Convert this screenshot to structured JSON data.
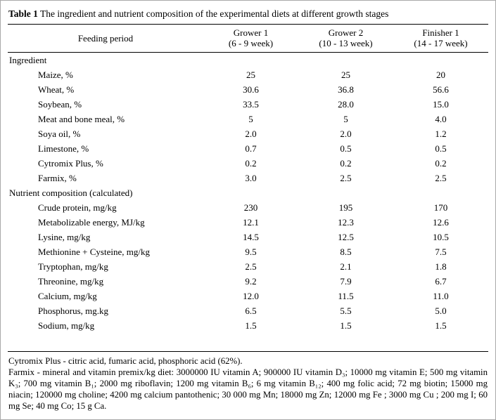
{
  "title": {
    "label": "Table 1",
    "text": "The ingredient and nutrient composition of the experimental diets at different growth stages"
  },
  "table": {
    "feeding_period_label": "Feeding period",
    "columns": [
      {
        "name": "Grower 1",
        "weeks": "(6 - 9 week)"
      },
      {
        "name": "Grower 2",
        "weeks": "(10 - 13 week)"
      },
      {
        "name": "Finisher 1",
        "weeks": "(14 - 17 week)"
      }
    ],
    "sections": [
      {
        "name": "Ingredient",
        "rows": [
          {
            "label": "Maize, %",
            "values": [
              "25",
              "25",
              "20"
            ]
          },
          {
            "label": "Wheat, %",
            "values": [
              "30.6",
              "36.8",
              "56.6"
            ]
          },
          {
            "label": "Soybean, %",
            "values": [
              "33.5",
              "28.0",
              "15.0"
            ]
          },
          {
            "label": "Meat and bone meal, %",
            "values": [
              "5",
              "5",
              "4.0"
            ]
          },
          {
            "label": "Soya oil, %",
            "values": [
              "2.0",
              "2.0",
              "1.2"
            ]
          },
          {
            "label": "Limestone, %",
            "values": [
              "0.7",
              "0.5",
              "0.5"
            ]
          },
          {
            "label": "Cytromix Plus, %",
            "values": [
              "0.2",
              "0.2",
              "0.2"
            ]
          },
          {
            "label": "Farmix, %",
            "values": [
              "3.0",
              "2.5",
              "2.5"
            ]
          }
        ]
      },
      {
        "name": "Nutrient composition (calculated)",
        "rows": [
          {
            "label": "Crude protein, mg/kg",
            "values": [
              "230",
              "195",
              "170"
            ]
          },
          {
            "label": "Metabolizable energy, MJ/kg",
            "values": [
              "12.1",
              "12.3",
              "12.6"
            ]
          },
          {
            "label": "Lysine, mg/kg",
            "values": [
              "14.5",
              "12.5",
              "10.5"
            ]
          },
          {
            "label": "Methionine + Cysteine, mg/kg",
            "values": [
              "9.5",
              "8.5",
              "7.5"
            ]
          },
          {
            "label": "Tryptophan, mg/kg",
            "values": [
              "2.5",
              "2.1",
              "1.8"
            ]
          },
          {
            "label": "Threonine, mg/kg",
            "values": [
              "9.2",
              "7.9",
              "6.7"
            ]
          },
          {
            "label": "Calcium, mg/kg",
            "values": [
              "12.0",
              "11.5",
              "11.0"
            ]
          },
          {
            "label": "Phosphorus, mg.kg",
            "values": [
              "6.5",
              "5.5",
              "5.0"
            ]
          },
          {
            "label": "Sodium, mg/kg",
            "values": [
              "1.5",
              "1.5",
              "1.5"
            ]
          }
        ]
      }
    ]
  },
  "footnotes": [
    "Cytromix Plus - citric acid, fumaric acid, phosphoric acid (62%).",
    "Farmix - mineral and vitamin premix/kg diet: 3000000 IU vitamin A; 900000 IU vitamin D₃; 10000 mg vitamin E; 500 mg vitamin K₃; 700 mg vitamin B₁; 2000 mg riboflavin; 1200 mg vitamin B₆; 6 mg vitamin B₁₂; 400 mg folic acid; 72 mg biotin; 15000 mg niacin; 120000 mg choline; 4200 mg calcium pantothenic; 30 000 mg Mn; 18000 mg Zn; 12000 mg Fe ; 3000 mg Cu ; 200 mg I; 60 mg Se; 40 mg Co; 15 g Ca."
  ]
}
